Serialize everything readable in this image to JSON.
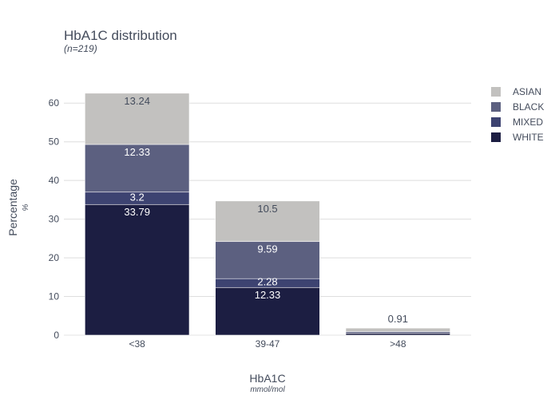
{
  "chart_data": {
    "type": "bar",
    "stacked": true,
    "title": "HbA1C distribution",
    "subtitle": "(n=219)",
    "xlabel": "HbA1C",
    "xunit": "mmol/mol",
    "ylabel": "Percentage",
    "yunit": "%",
    "categories": [
      "<38",
      "39-47",
      ">48"
    ],
    "ylim": [
      0,
      65
    ],
    "yticks": [
      0,
      10,
      20,
      30,
      40,
      50,
      60
    ],
    "grid": true,
    "legend_position": "top-right",
    "series": [
      {
        "name": "WHITE",
        "color": "#1c1e42",
        "label_color": "#ffffff",
        "values": [
          33.79,
          12.33,
          0.46
        ],
        "labels": [
          "33.79",
          "12.33",
          ""
        ]
      },
      {
        "name": "MIXED",
        "color": "#3d4371",
        "label_color": "#ffffff",
        "values": [
          3.2,
          2.28,
          0.0
        ],
        "labels": [
          "3.2",
          "2.28",
          ""
        ]
      },
      {
        "name": "BLACK",
        "color": "#5c6080",
        "label_color": "#ffffff",
        "values": [
          12.33,
          9.59,
          0.46
        ],
        "labels": [
          "12.33",
          "9.59",
          ""
        ]
      },
      {
        "name": "ASIAN",
        "color": "#c2c1bf",
        "label_color": "#444c5c",
        "values": [
          13.24,
          10.5,
          0.91
        ],
        "labels": [
          "13.24",
          "10.5",
          "0.91"
        ]
      }
    ],
    "legend_order": [
      "ASIAN",
      "BLACK",
      "MIXED",
      "WHITE"
    ]
  }
}
